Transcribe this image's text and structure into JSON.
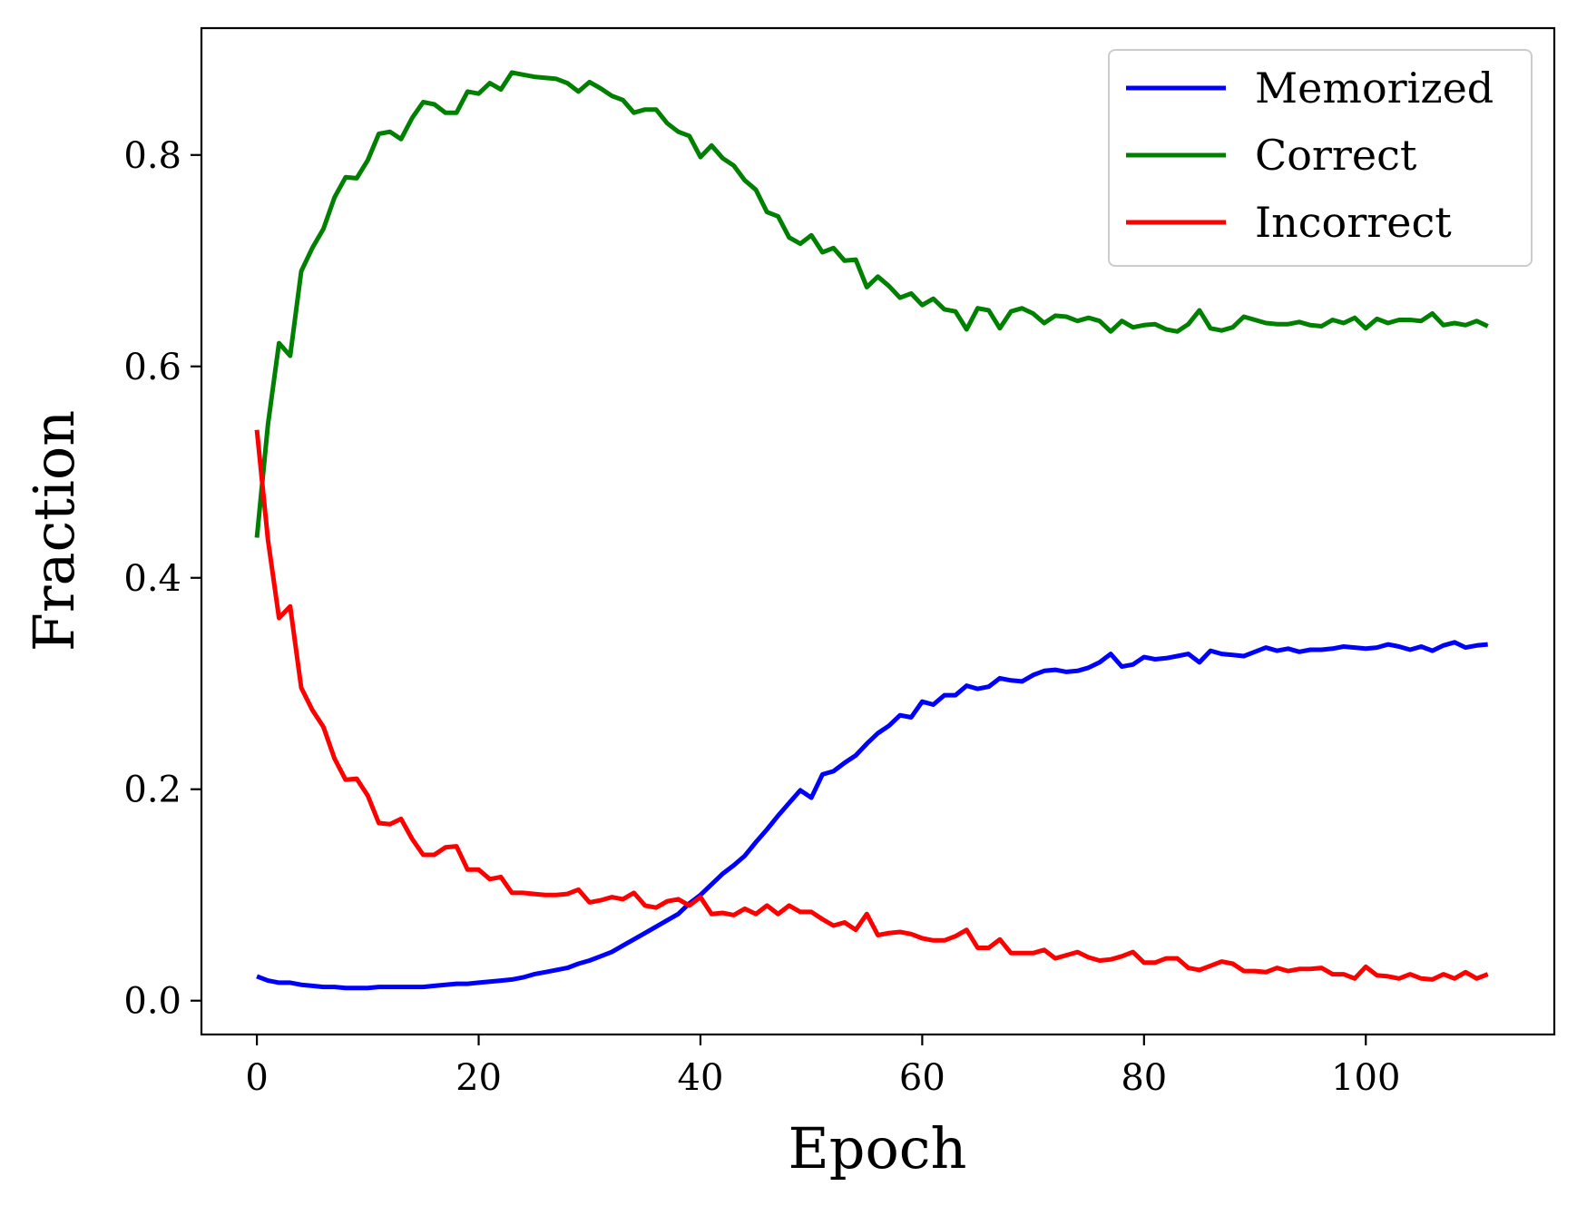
{
  "chart_data": {
    "type": "line",
    "title": "",
    "xlabel": "Epoch",
    "ylabel": "Fraction",
    "xlim": [
      -5,
      117
    ],
    "ylim": [
      -0.032,
      0.92
    ],
    "xticks": [
      0,
      20,
      40,
      60,
      80,
      100
    ],
    "xtick_labels": [
      "0",
      "20",
      "40",
      "60",
      "80",
      "100"
    ],
    "yticks": [
      0.0,
      0.2,
      0.4,
      0.6,
      0.8
    ],
    "ytick_labels": [
      "0.0",
      "0.2",
      "0.4",
      "0.6",
      "0.8"
    ],
    "grid": false,
    "legend_position": "upper right",
    "x": [
      0,
      1,
      2,
      3,
      4,
      5,
      6,
      7,
      8,
      9,
      10,
      11,
      12,
      13,
      14,
      15,
      16,
      17,
      18,
      19,
      20,
      21,
      22,
      23,
      24,
      25,
      26,
      27,
      28,
      29,
      30,
      31,
      32,
      33,
      34,
      35,
      36,
      37,
      38,
      39,
      40,
      41,
      42,
      43,
      44,
      45,
      46,
      47,
      48,
      49,
      50,
      51,
      52,
      53,
      54,
      55,
      56,
      57,
      58,
      59,
      60,
      61,
      62,
      63,
      64,
      65,
      66,
      67,
      68,
      69,
      70,
      71,
      72,
      73,
      74,
      75,
      76,
      77,
      78,
      79,
      80,
      81,
      82,
      83,
      84,
      85,
      86,
      87,
      88,
      89,
      90,
      91,
      92,
      93,
      94,
      95,
      96,
      97,
      98,
      99,
      100,
      101,
      102,
      103,
      104,
      105,
      106,
      107,
      108,
      109,
      110,
      111
    ],
    "series": [
      {
        "name": "Memorized",
        "color": "#0000ff",
        "values": [
          0.023,
          0.019,
          0.017,
          0.017,
          0.015,
          0.014,
          0.013,
          0.013,
          0.012,
          0.012,
          0.012,
          0.013,
          0.013,
          0.013,
          0.013,
          0.013,
          0.014,
          0.015,
          0.016,
          0.016,
          0.017,
          0.018,
          0.019,
          0.02,
          0.022,
          0.025,
          0.027,
          0.029,
          0.031,
          0.035,
          0.038,
          0.042,
          0.046,
          0.052,
          0.058,
          0.064,
          0.07,
          0.076,
          0.082,
          0.092,
          0.1,
          0.11,
          0.12,
          0.128,
          0.137,
          0.15,
          0.162,
          0.175,
          0.187,
          0.199,
          0.192,
          0.214,
          0.217,
          0.225,
          0.232,
          0.243,
          0.253,
          0.26,
          0.27,
          0.268,
          0.283,
          0.28,
          0.289,
          0.289,
          0.298,
          0.295,
          0.297,
          0.305,
          0.303,
          0.302,
          0.308,
          0.312,
          0.313,
          0.311,
          0.312,
          0.315,
          0.32,
          0.328,
          0.316,
          0.318,
          0.325,
          0.323,
          0.324,
          0.326,
          0.328,
          0.32,
          0.331,
          0.328,
          0.327,
          0.326,
          0.33,
          0.334,
          0.331,
          0.333,
          0.33,
          0.332,
          0.332,
          0.333,
          0.335,
          0.334,
          0.333,
          0.334,
          0.337,
          0.335,
          0.332,
          0.335,
          0.331,
          0.336,
          0.339,
          0.334,
          0.336,
          0.337
        ]
      },
      {
        "name": "Correct",
        "color": "#008000",
        "values": [
          0.438,
          0.545,
          0.622,
          0.61,
          0.69,
          0.712,
          0.73,
          0.76,
          0.779,
          0.778,
          0.795,
          0.82,
          0.822,
          0.815,
          0.835,
          0.85,
          0.848,
          0.84,
          0.84,
          0.86,
          0.858,
          0.868,
          0.862,
          0.878,
          0.876,
          0.874,
          0.873,
          0.872,
          0.868,
          0.86,
          0.869,
          0.863,
          0.856,
          0.852,
          0.84,
          0.843,
          0.843,
          0.83,
          0.822,
          0.818,
          0.798,
          0.809,
          0.797,
          0.79,
          0.776,
          0.767,
          0.746,
          0.742,
          0.722,
          0.716,
          0.724,
          0.708,
          0.712,
          0.7,
          0.701,
          0.675,
          0.685,
          0.676,
          0.665,
          0.669,
          0.658,
          0.664,
          0.654,
          0.652,
          0.635,
          0.655,
          0.653,
          0.636,
          0.652,
          0.655,
          0.65,
          0.641,
          0.648,
          0.647,
          0.643,
          0.646,
          0.643,
          0.633,
          0.643,
          0.637,
          0.639,
          0.64,
          0.635,
          0.633,
          0.64,
          0.653,
          0.636,
          0.634,
          0.637,
          0.647,
          0.644,
          0.641,
          0.64,
          0.64,
          0.642,
          0.639,
          0.638,
          0.644,
          0.641,
          0.646,
          0.636,
          0.645,
          0.641,
          0.644,
          0.644,
          0.643,
          0.65,
          0.639,
          0.641,
          0.639,
          0.643,
          0.638
        ]
      },
      {
        "name": "Incorrect",
        "color": "#ff0000",
        "values": [
          0.54,
          0.436,
          0.362,
          0.373,
          0.296,
          0.275,
          0.259,
          0.229,
          0.209,
          0.21,
          0.194,
          0.168,
          0.167,
          0.172,
          0.153,
          0.138,
          0.138,
          0.145,
          0.146,
          0.124,
          0.124,
          0.115,
          0.117,
          0.102,
          0.102,
          0.101,
          0.1,
          0.1,
          0.101,
          0.105,
          0.093,
          0.095,
          0.098,
          0.096,
          0.102,
          0.09,
          0.088,
          0.094,
          0.096,
          0.09,
          0.098,
          0.082,
          0.083,
          0.081,
          0.087,
          0.082,
          0.09,
          0.082,
          0.09,
          0.084,
          0.084,
          0.077,
          0.071,
          0.074,
          0.067,
          0.082,
          0.062,
          0.064,
          0.065,
          0.063,
          0.059,
          0.057,
          0.057,
          0.061,
          0.067,
          0.05,
          0.05,
          0.058,
          0.045,
          0.045,
          0.045,
          0.048,
          0.04,
          0.043,
          0.046,
          0.041,
          0.038,
          0.039,
          0.042,
          0.046,
          0.036,
          0.036,
          0.04,
          0.04,
          0.031,
          0.029,
          0.033,
          0.037,
          0.035,
          0.028,
          0.028,
          0.027,
          0.031,
          0.028,
          0.03,
          0.03,
          0.031,
          0.025,
          0.025,
          0.021,
          0.032,
          0.024,
          0.023,
          0.021,
          0.025,
          0.021,
          0.02,
          0.025,
          0.021,
          0.027,
          0.021,
          0.025
        ]
      }
    ]
  }
}
